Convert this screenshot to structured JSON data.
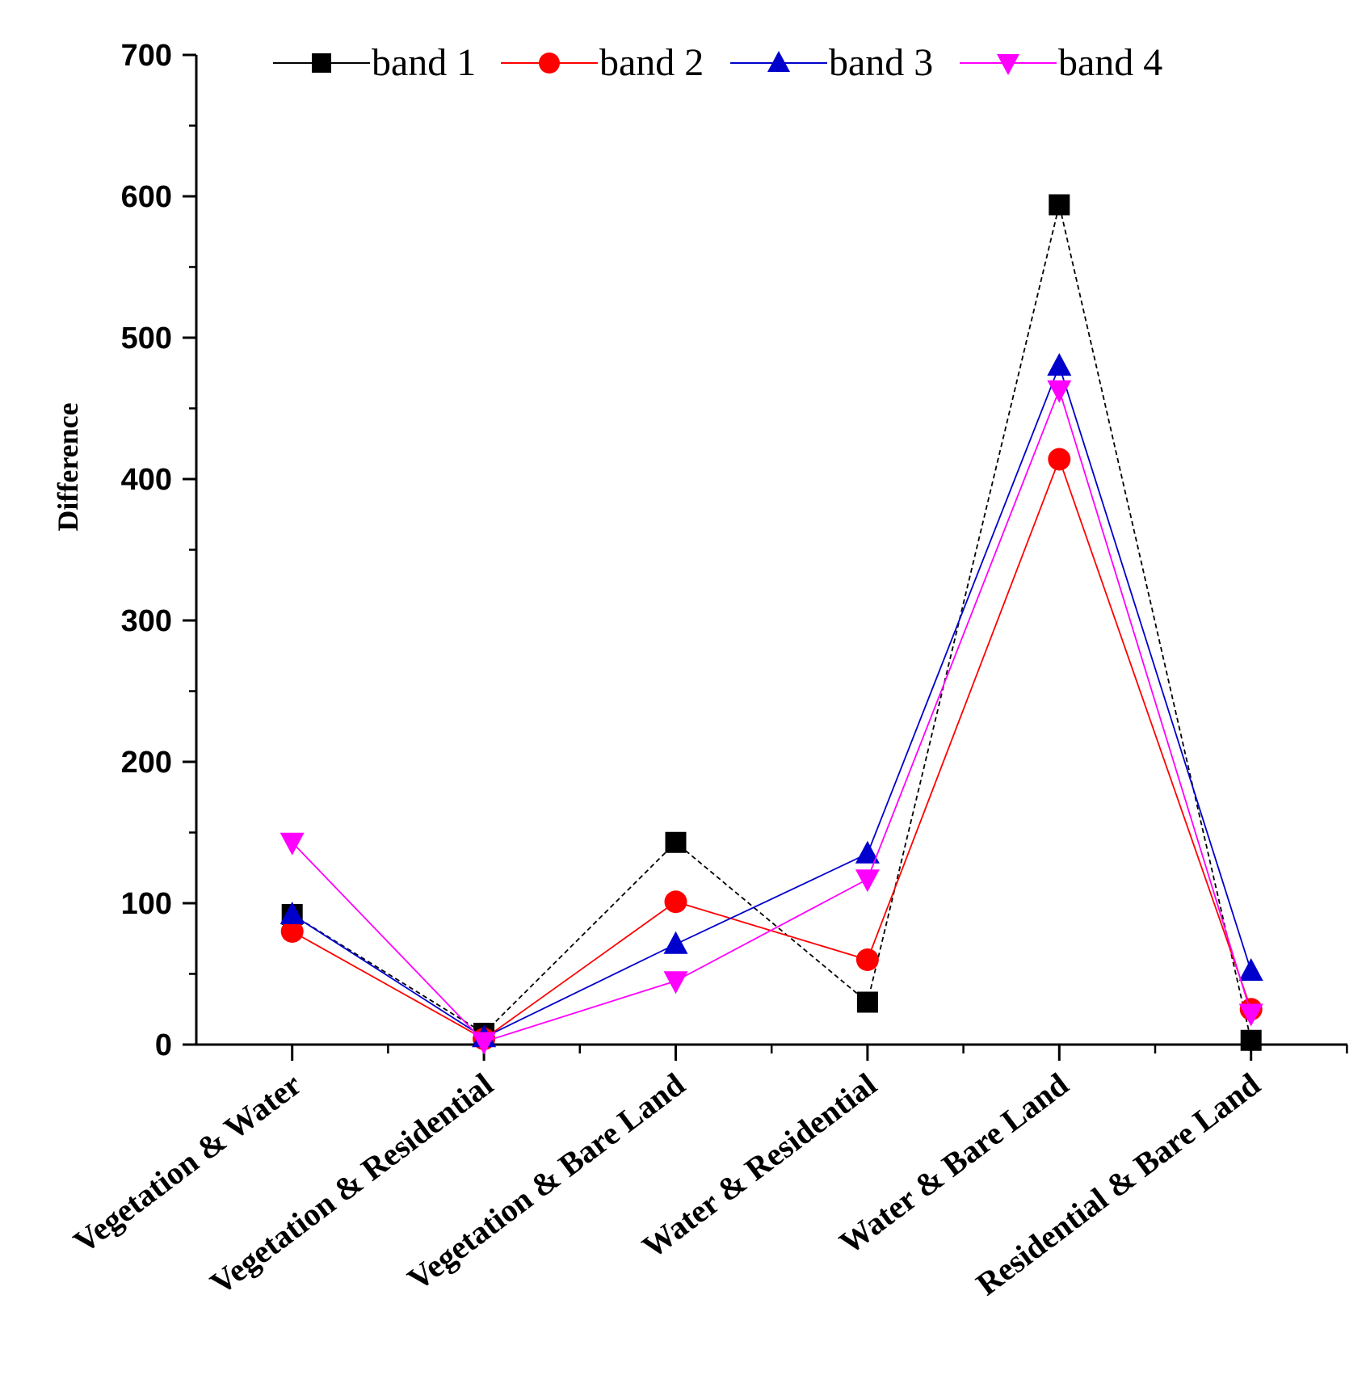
{
  "chart_data": {
    "type": "line",
    "title": "",
    "xlabel": "",
    "ylabel": "Difference",
    "ylim": [
      0,
      700
    ],
    "yticks": [
      0,
      100,
      200,
      300,
      400,
      500,
      600,
      700
    ],
    "ytick_labels": [
      "0",
      "100",
      "200",
      "300",
      "400",
      "500",
      "600",
      "700"
    ],
    "categories": [
      "Vegetation & Water",
      "Vegetation & Residential",
      "Vegetation & Bare Land",
      "Water & Residential",
      "Water & Bare Land",
      "Residential & Bare Land"
    ],
    "series": [
      {
        "name": "band 1",
        "color": "#000000",
        "marker": "square",
        "values": [
          92,
          8,
          143,
          30,
          594,
          3
        ]
      },
      {
        "name": "band 2",
        "color": "#ff0000",
        "marker": "circle",
        "values": [
          80,
          4,
          101,
          60,
          414,
          25
        ]
      },
      {
        "name": "band 3",
        "color": "#0000cc",
        "marker": "triangle-up",
        "values": [
          92,
          5,
          71,
          135,
          480,
          52
        ]
      },
      {
        "name": "band 4",
        "color": "#ff00ff",
        "marker": "triangle-down",
        "values": [
          143,
          2,
          45,
          117,
          463,
          22
        ]
      }
    ],
    "legend_position": "top",
    "grid": false
  }
}
